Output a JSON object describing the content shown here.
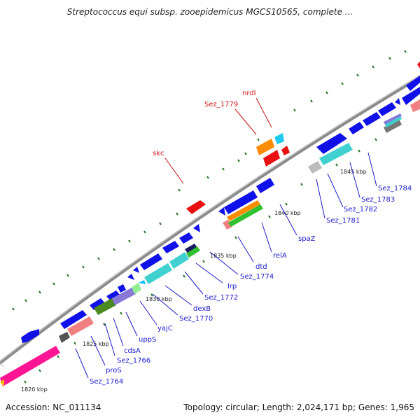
{
  "title": "Streptococcus equi subsp. zooepidemicus MGCS10565, complete ...",
  "accession": "Accession: NC_011134",
  "summary": "Topology: circular; Length: 2,024,171 bp; Genes: 1,965",
  "colors": {
    "backbone": "#8a8a8a",
    "gene_blue": "#1010e8",
    "gene_red": "#e81010",
    "label_blue": "#1a1acc",
    "label_red": "#cc1111",
    "tick_green": "#1e6e1e"
  },
  "scale_labels": [
    "1820 kbp",
    "1825 kbp",
    "1830 kbp",
    "1835 kbp",
    "1840 kbp",
    "1845 kbp"
  ],
  "gene_labels_blue": [
    "Sez_1764",
    "proS",
    "Sez_1766",
    "cdsA",
    "uppS",
    "yajC",
    "Sez_1770",
    "dexB",
    "Sez_1772",
    "lrp",
    "Sez_1774",
    "dtd",
    "relA",
    "spaZ",
    "Sez_1781",
    "Sez_1782",
    "Sez_1783",
    "Sez_1784"
  ],
  "gene_labels_red": [
    "skc",
    "Sez_1779",
    "nrdI"
  ]
}
